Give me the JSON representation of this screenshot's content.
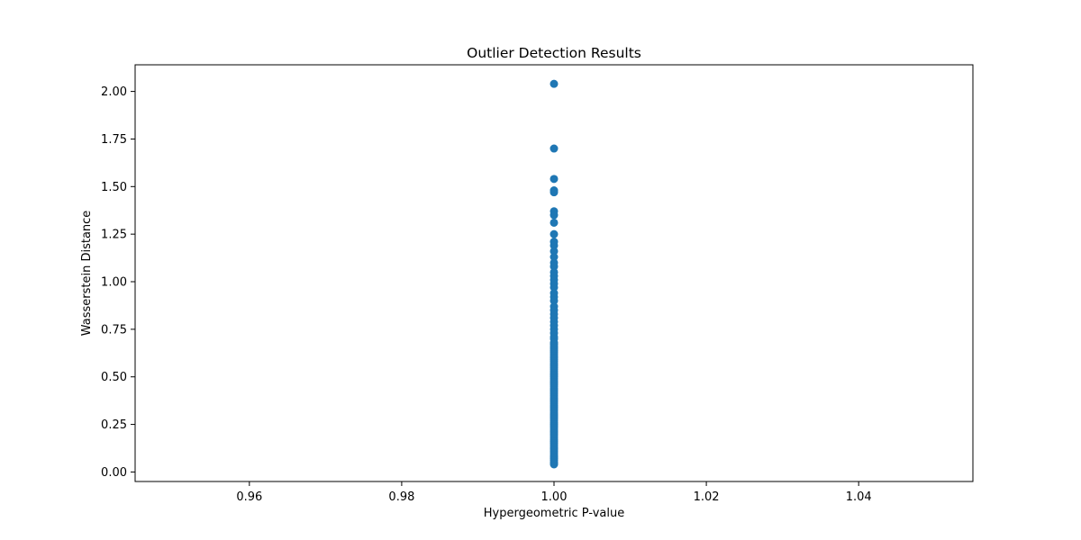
{
  "chart_data": {
    "type": "scatter",
    "title": "Outlier Detection Results",
    "xlabel": "Hypergeometric P-value",
    "ylabel": "Wasserstein Distance",
    "xlim": [
      0.945,
      1.055
    ],
    "ylim": [
      -0.05,
      2.14
    ],
    "xticks": [
      0.96,
      0.98,
      1.0,
      1.02,
      1.04
    ],
    "xtick_labels": [
      "0.96",
      "0.98",
      "1.00",
      "1.02",
      "1.04"
    ],
    "yticks": [
      0.0,
      0.25,
      0.5,
      0.75,
      1.0,
      1.25,
      1.5,
      1.75,
      2.0
    ],
    "ytick_labels": [
      "0.00",
      "0.25",
      "0.50",
      "0.75",
      "1.00",
      "1.25",
      "1.50",
      "1.75",
      "2.00"
    ],
    "grid": false,
    "legend": "none",
    "marker_color": "#1f77b4",
    "series": [
      {
        "x": [
          1.0,
          1.0,
          1.0,
          1.0,
          1.0,
          1.0,
          1.0,
          1.0,
          1.0,
          1.0,
          1.0,
          1.0,
          1.0,
          1.0,
          1.0,
          1.0,
          1.0,
          1.0,
          1.0,
          1.0,
          1.0,
          1.0,
          1.0,
          1.0,
          1.0,
          1.0,
          1.0,
          1.0,
          1.0,
          1.0,
          1.0,
          1.0,
          1.0,
          1.0,
          1.0,
          1.0,
          1.0,
          1.0,
          1.0,
          1.0,
          1.0,
          1.0,
          1.0,
          1.0,
          1.0,
          1.0,
          1.0,
          1.0,
          1.0,
          1.0,
          1.0,
          1.0,
          1.0,
          1.0,
          1.0,
          1.0,
          1.0,
          1.0,
          1.0,
          1.0,
          1.0,
          1.0,
          1.0,
          1.0,
          1.0,
          1.0,
          1.0,
          1.0,
          1.0,
          1.0,
          1.0,
          1.0,
          1.0,
          1.0,
          1.0,
          1.0,
          1.0,
          1.0,
          1.0,
          1.0,
          1.0,
          1.0,
          1.0,
          1.0,
          1.0,
          1.0,
          1.0,
          1.0,
          1.0,
          1.0,
          1.0,
          1.0,
          1.0,
          1.0,
          1.0,
          1.0,
          1.0,
          1.0,
          1.0
        ],
        "y": [
          2.04,
          1.7,
          1.54,
          1.48,
          1.47,
          1.37,
          1.35,
          1.31,
          1.25,
          1.21,
          1.19,
          1.16,
          1.13,
          1.1,
          1.08,
          1.05,
          1.03,
          1.01,
          0.99,
          0.97,
          0.94,
          0.92,
          0.9,
          0.87,
          0.85,
          0.83,
          0.81,
          0.79,
          0.77,
          0.75,
          0.73,
          0.71,
          0.7,
          0.68,
          0.67,
          0.66,
          0.65,
          0.64,
          0.63,
          0.62,
          0.61,
          0.6,
          0.59,
          0.58,
          0.57,
          0.56,
          0.55,
          0.54,
          0.53,
          0.52,
          0.51,
          0.5,
          0.49,
          0.48,
          0.47,
          0.46,
          0.45,
          0.44,
          0.43,
          0.42,
          0.41,
          0.4,
          0.39,
          0.38,
          0.37,
          0.36,
          0.35,
          0.34,
          0.33,
          0.32,
          0.31,
          0.3,
          0.29,
          0.28,
          0.27,
          0.26,
          0.25,
          0.24,
          0.23,
          0.22,
          0.21,
          0.2,
          0.19,
          0.18,
          0.17,
          0.16,
          0.15,
          0.14,
          0.13,
          0.12,
          0.11,
          0.1,
          0.09,
          0.08,
          0.07,
          0.06,
          0.05,
          0.045,
          0.04
        ]
      }
    ]
  }
}
